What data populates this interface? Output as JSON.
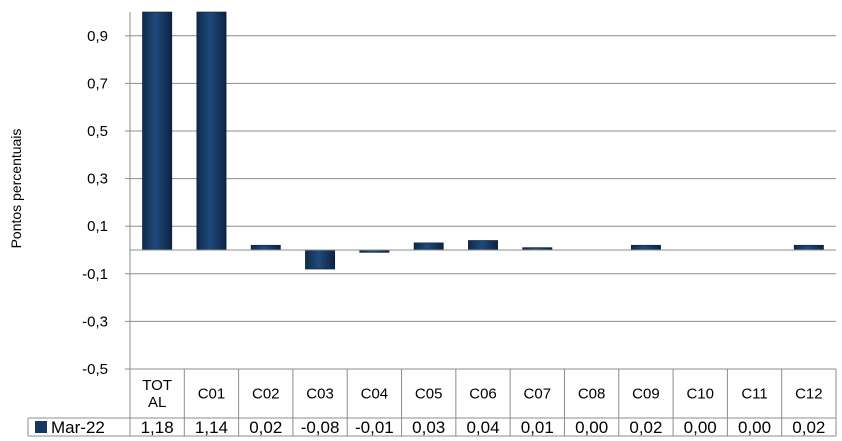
{
  "chart_data": {
    "type": "bar",
    "ylabel": "Pontos percentuais",
    "ylim": [
      -0.5,
      1.0
    ],
    "yticks": [
      0.9,
      0.7,
      0.5,
      0.3,
      0.1,
      -0.1,
      -0.3,
      -0.5
    ],
    "ytick_labels": [
      "0,9",
      "0,7",
      "0,5",
      "0,3",
      "0,1",
      "-0,1",
      "-0,3",
      "-0,5"
    ],
    "grid": true,
    "legend": "data-table-left",
    "categories": [
      "TOTAL",
      "C01",
      "C02",
      "C03",
      "C04",
      "C05",
      "C06",
      "C07",
      "C08",
      "C09",
      "C10",
      "C11",
      "C12"
    ],
    "category_labels": [
      [
        "TOT",
        "AL"
      ],
      [
        "C01"
      ],
      [
        "C02"
      ],
      [
        "C03"
      ],
      [
        "C04"
      ],
      [
        "C05"
      ],
      [
        "C06"
      ],
      [
        "C07"
      ],
      [
        "C08"
      ],
      [
        "C09"
      ],
      [
        "C10"
      ],
      [
        "C11"
      ],
      [
        "C12"
      ]
    ],
    "series": [
      {
        "name": "Mar-22",
        "color": "#17375E",
        "values": [
          1.18,
          1.14,
          0.02,
          -0.08,
          -0.01,
          0.03,
          0.04,
          0.01,
          0.0,
          0.02,
          0.0,
          0.0,
          0.02
        ],
        "value_labels": [
          "1,18",
          "1,14",
          "0,02",
          "-0,08",
          "-0,01",
          "0,03",
          "0,04",
          "0,01",
          "0,00",
          "0,02",
          "0,00",
          "0,00",
          "0,02"
        ]
      }
    ]
  }
}
